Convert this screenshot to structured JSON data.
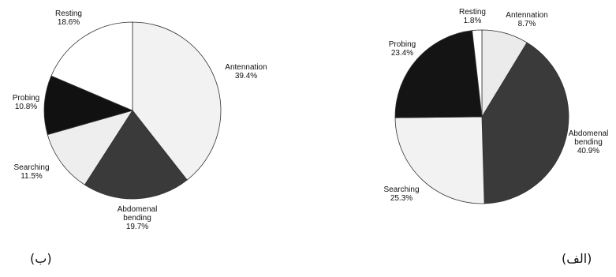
{
  "chart_data": [
    {
      "type": "pie",
      "caption": "(ب)",
      "slices": [
        {
          "label": "Antennation",
          "value": 39.4,
          "value_text": "39.4%",
          "color": "#f2f2f2"
        },
        {
          "label": "Abdomenal bending",
          "value": 19.7,
          "value_text": "19.7%",
          "color": "#3a3a3a"
        },
        {
          "label": "Searching",
          "value": 11.5,
          "value_text": "11.5%",
          "color": "#eeeeee"
        },
        {
          "label": "Probing",
          "value": 10.8,
          "value_text": "10.8%",
          "color": "#111111"
        },
        {
          "label": "Resting",
          "value": 18.6,
          "value_text": "18.6%",
          "color": "#ffffff"
        }
      ]
    },
    {
      "type": "pie",
      "caption": "(الف)",
      "slices": [
        {
          "label": "Antennation",
          "value": 8.7,
          "value_text": "8.7%",
          "color": "#ebebeb"
        },
        {
          "label": "Abdomenal bending",
          "value": 40.9,
          "value_text": "40.9%",
          "color": "#3a3a3a"
        },
        {
          "label": "Searching",
          "value": 25.3,
          "value_text": "25.3%",
          "color": "#f2f2f2"
        },
        {
          "label": "Probing",
          "value": 23.4,
          "value_text": "23.4%",
          "color": "#141414"
        },
        {
          "label": "Resting",
          "value": 1.8,
          "value_text": "1.8%",
          "color": "#ffffff"
        }
      ]
    }
  ]
}
